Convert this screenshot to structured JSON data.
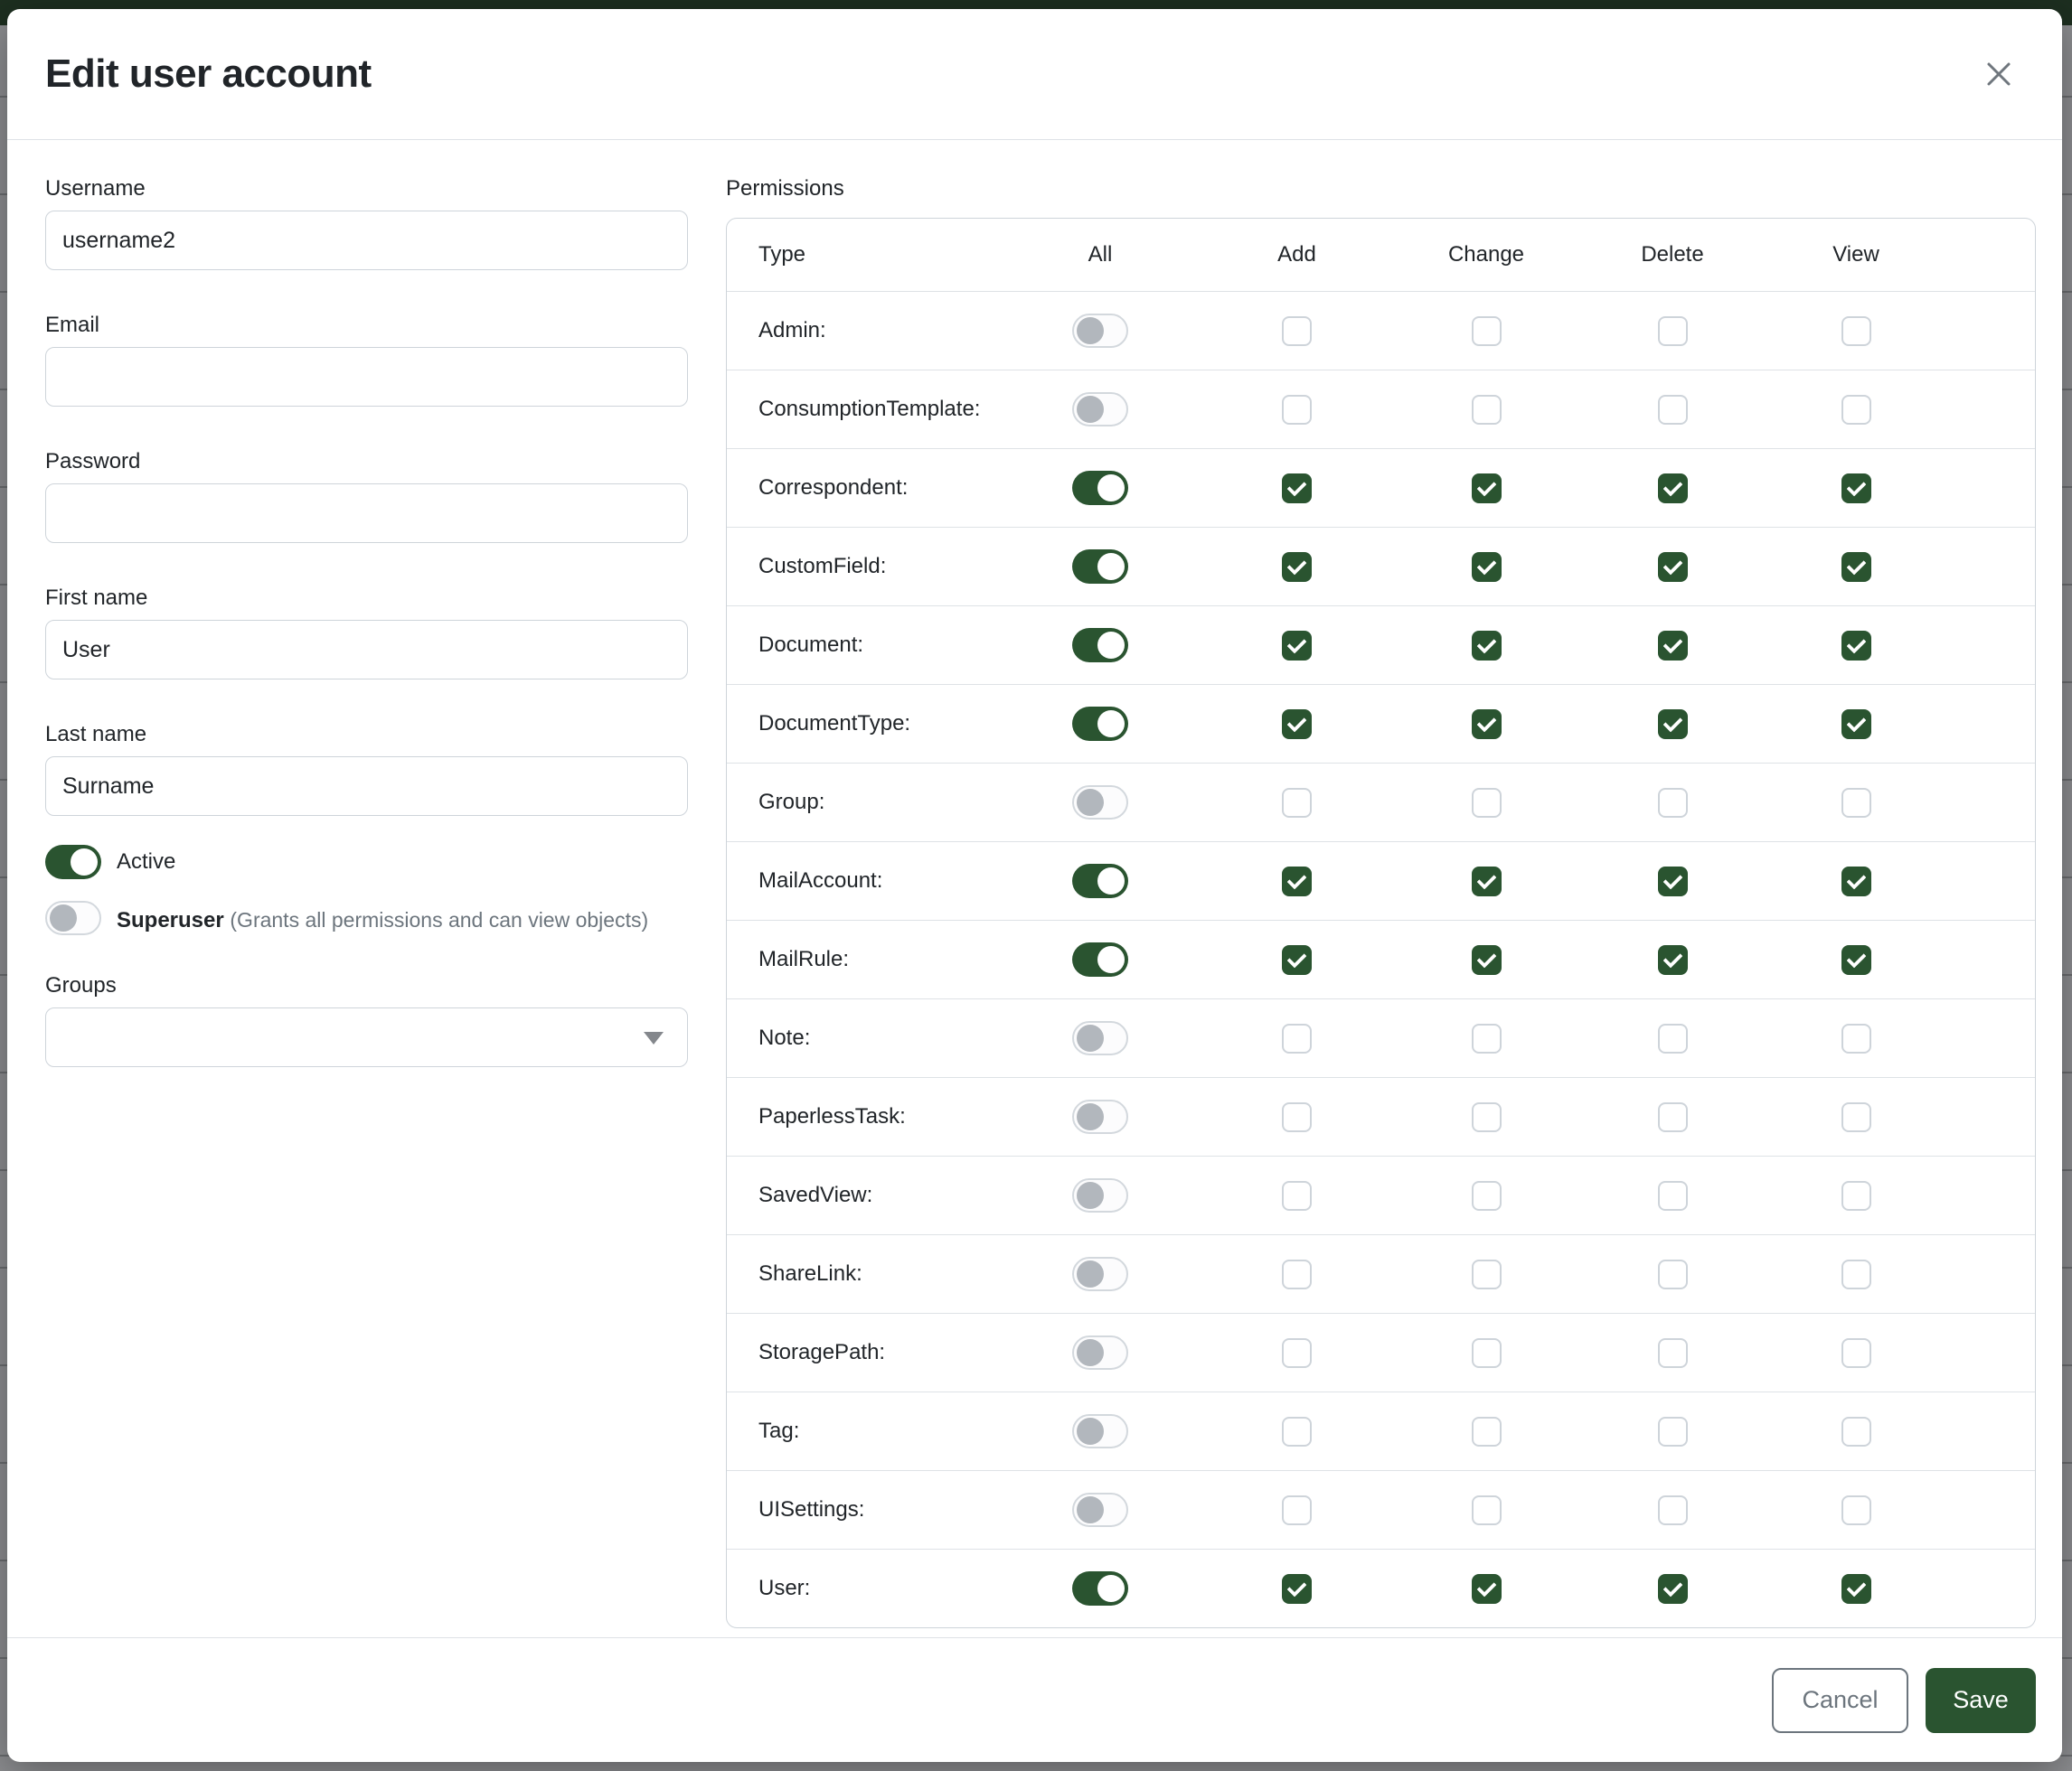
{
  "modal": {
    "title": "Edit user account"
  },
  "form": {
    "username": {
      "label": "Username",
      "value": "username2"
    },
    "email": {
      "label": "Email",
      "value": ""
    },
    "password": {
      "label": "Password",
      "value": ""
    },
    "first_name": {
      "label": "First name",
      "value": "User"
    },
    "last_name": {
      "label": "Last name",
      "value": "Surname"
    },
    "active": {
      "label": "Active",
      "enabled": true
    },
    "superuser": {
      "label": "Superuser",
      "hint": "(Grants all permissions and can view objects)",
      "enabled": false
    },
    "groups": {
      "label": "Groups",
      "value": ""
    }
  },
  "permissions": {
    "label": "Permissions",
    "columns": [
      "Type",
      "All",
      "Add",
      "Change",
      "Delete",
      "View"
    ],
    "rows": [
      {
        "type": "Admin:",
        "all": false,
        "add": false,
        "change": false,
        "delete": false,
        "view": false
      },
      {
        "type": "ConsumptionTemplate:",
        "all": false,
        "add": false,
        "change": false,
        "delete": false,
        "view": false
      },
      {
        "type": "Correspondent:",
        "all": true,
        "add": true,
        "change": true,
        "delete": true,
        "view": true
      },
      {
        "type": "CustomField:",
        "all": true,
        "add": true,
        "change": true,
        "delete": true,
        "view": true
      },
      {
        "type": "Document:",
        "all": true,
        "add": true,
        "change": true,
        "delete": true,
        "view": true
      },
      {
        "type": "DocumentType:",
        "all": true,
        "add": true,
        "change": true,
        "delete": true,
        "view": true
      },
      {
        "type": "Group:",
        "all": false,
        "add": false,
        "change": false,
        "delete": false,
        "view": false
      },
      {
        "type": "MailAccount:",
        "all": true,
        "add": true,
        "change": true,
        "delete": true,
        "view": true
      },
      {
        "type": "MailRule:",
        "all": true,
        "add": true,
        "change": true,
        "delete": true,
        "view": true
      },
      {
        "type": "Note:",
        "all": false,
        "add": false,
        "change": false,
        "delete": false,
        "view": false
      },
      {
        "type": "PaperlessTask:",
        "all": false,
        "add": false,
        "change": false,
        "delete": false,
        "view": false
      },
      {
        "type": "SavedView:",
        "all": false,
        "add": false,
        "change": false,
        "delete": false,
        "view": false
      },
      {
        "type": "ShareLink:",
        "all": false,
        "add": false,
        "change": false,
        "delete": false,
        "view": false
      },
      {
        "type": "StoragePath:",
        "all": false,
        "add": false,
        "change": false,
        "delete": false,
        "view": false
      },
      {
        "type": "Tag:",
        "all": false,
        "add": false,
        "change": false,
        "delete": false,
        "view": false
      },
      {
        "type": "UISettings:",
        "all": false,
        "add": false,
        "change": false,
        "delete": false,
        "view": false
      },
      {
        "type": "User:",
        "all": true,
        "add": true,
        "change": true,
        "delete": true,
        "view": true
      }
    ]
  },
  "footer": {
    "cancel_label": "Cancel",
    "save_label": "Save"
  },
  "colors": {
    "primary_green": "#2a5430",
    "topbar_green": "#1d2f20",
    "backdrop_gray": "#8d8e91"
  }
}
